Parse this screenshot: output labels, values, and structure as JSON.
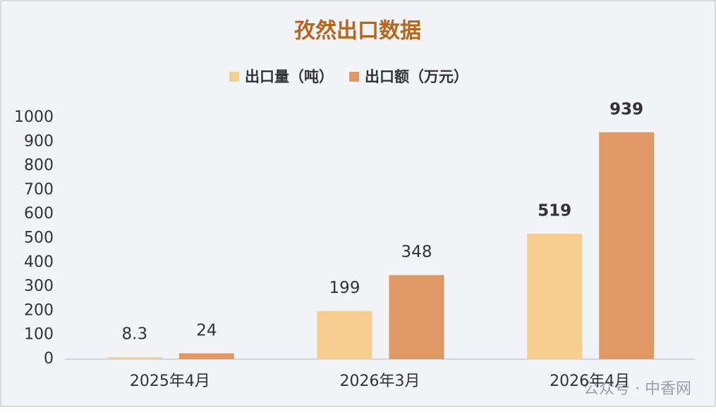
{
  "chart_data": {
    "type": "bar",
    "title": "孜然出口数据",
    "categories": [
      "2025年4月",
      "2026年3月",
      "2026年4月"
    ],
    "series": [
      {
        "name": "出口量（吨）",
        "color": "#f5cd8e",
        "values": [
          8.3,
          199,
          519
        ]
      },
      {
        "name": "出口额（万元）",
        "color": "#e09865",
        "values": [
          24,
          348,
          939
        ]
      }
    ],
    "ylim": [
      0,
      1000
    ],
    "yticks": [
      0,
      100,
      200,
      300,
      400,
      500,
      600,
      700,
      800,
      900,
      1000
    ],
    "legend": "top",
    "watermark": "公众号 · 中香网"
  }
}
